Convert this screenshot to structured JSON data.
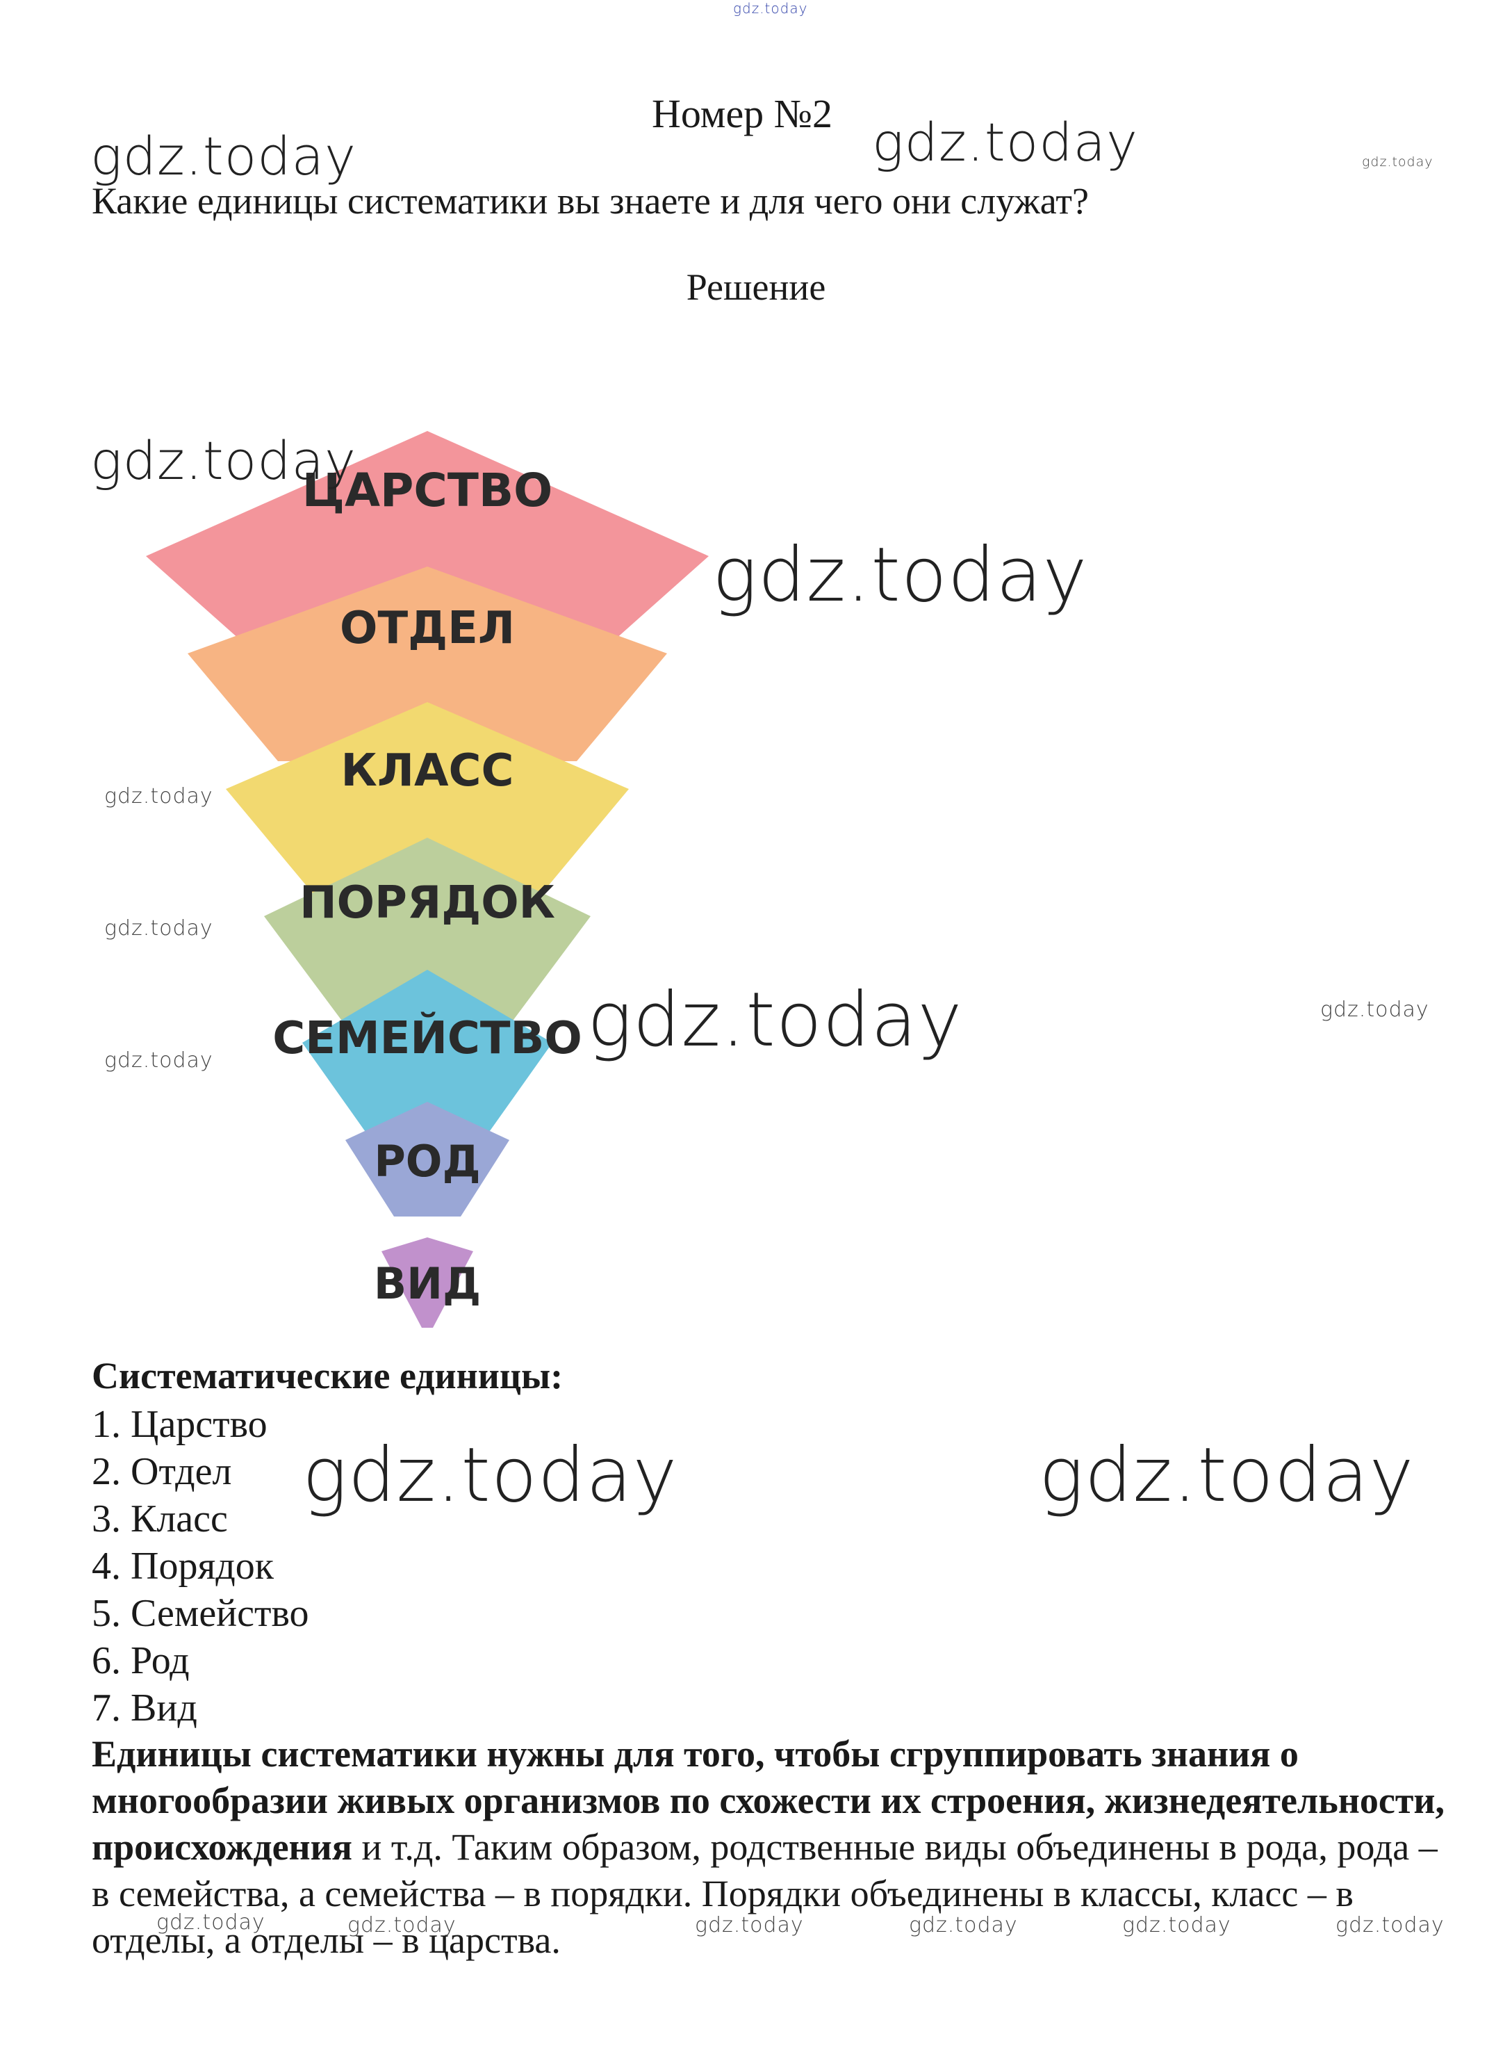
{
  "header": {
    "title": "Номер №2",
    "question": "Какие единицы систематики вы знаете и для чего они служат?",
    "solution_label": "Решение"
  },
  "pyramid": {
    "levels": [
      {
        "label": "ЦАРСТВО",
        "color": "#f3959b"
      },
      {
        "label": "ОТДЕЛ",
        "color": "#f7b483"
      },
      {
        "label": "КЛАСС",
        "color": "#f2d970"
      },
      {
        "label": "ПОРЯДОК",
        "color": "#bccf9c"
      },
      {
        "label": "СЕМЕЙСТВО",
        "color": "#6cc3dc"
      },
      {
        "label": "РОД",
        "color": "#9aa7d6"
      },
      {
        "label": "ВИД",
        "color": "#c191cc"
      }
    ]
  },
  "units": {
    "heading": "Систематические единицы:",
    "items": [
      "1. Царство",
      "2. Отдел",
      "3. Класс",
      "4. Порядок",
      "5. Семейство",
      "6. Род",
      "7. Вид"
    ]
  },
  "paragraph": {
    "bold": "Единицы систематики нужны для того, чтобы сгруппировать знания о многообразии живых организмов по схожести их строения, жизнедеятельности, происхождения",
    "rest": " и т.д. Таким образом, родственные виды объединены в рода, рода – в семейства, а семейства – в порядки. Порядки объединены в классы, класс – в отделы, а отделы – в царства."
  },
  "watermark": "gdz.today"
}
